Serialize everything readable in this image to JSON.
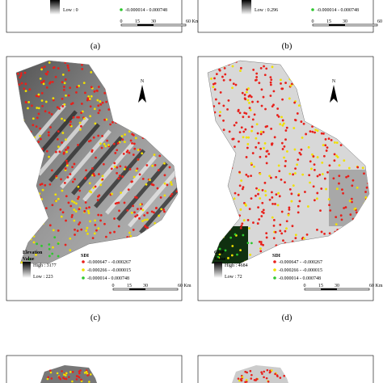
{
  "panels": [
    {
      "caption": "(a)",
      "legend": {
        "low": "Low : 0",
        "sdi": [
          "-0.000014 - 0.000748"
        ]
      },
      "scale": [
        "0",
        "15",
        "30",
        "60 Km"
      ]
    },
    {
      "caption": "(b)",
      "legend": {
        "low": "Low : 0.296",
        "sdi": [
          "-0.000014 - 0.000748"
        ]
      },
      "scale": [
        "0",
        "15",
        "30",
        "60 Km"
      ]
    },
    {
      "caption": "(c)",
      "north": "N",
      "legend": {
        "title": "Elevation",
        "value": "Value",
        "high": "High : 3177",
        "low": "Low : 223",
        "sdi_title": "SDI",
        "sdi": [
          "-0.000647 - -0.000267",
          "-0.000266 - -0.000015",
          "-0.000014 - 0.000748"
        ]
      },
      "scale": [
        "0",
        "15",
        "30",
        "60 Km"
      ]
    },
    {
      "caption": "(d)",
      "north": "N",
      "legend": {
        "title": "GDP",
        "value": "Value",
        "high": "High : 4684",
        "low": "Low : 72",
        "sdi_title": "SDI",
        "sdi": [
          "-0.000647 - -0.000267",
          "-0.000266 - -0.000015",
          "-0.000014 - 0.000748"
        ]
      },
      "scale": [
        "0",
        "15",
        "30",
        "60 Km"
      ]
    }
  ]
}
